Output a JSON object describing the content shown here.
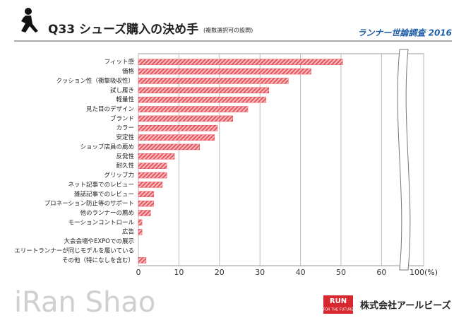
{
  "chart_data": {
    "type": "hbar",
    "title": "Q33 シューズ購入の決め手",
    "subtitle": "(複数選択可の設問)",
    "annotations": [
      "ランナー世論調査 2016",
      "iRan Shao",
      "RUN",
      "FOR THE FUTURE",
      "株式会社アールビーズ"
    ],
    "categories": [
      "フィット感",
      "価格",
      "クッション性（衝撃吸収性）",
      "試し履き",
      "軽量性",
      "見た目のデザイン",
      "ブランド",
      "カラー",
      "安定性",
      "ショップ店員の薦め",
      "反発性",
      "耐久性",
      "グリップ力",
      "ネット記事でのレビュー",
      "雑誌記事でのレビュー",
      "プロネーション防止等のサポート",
      "他のランナーの薦め",
      "モーションコントロール",
      "広告",
      "大会会場やEXPOでの展示",
      "エリートランナーが同じモデルを履いている",
      "その他（特になしを含む）"
    ],
    "values": [
      50.4,
      42.6,
      37,
      32.2,
      31.5,
      27,
      23.3,
      19.5,
      18.8,
      15.1,
      8.9,
      7,
      7,
      5.9,
      3.8,
      3.8,
      3,
      0.9,
      0.9,
      0,
      0,
      1.9
    ],
    "color": "#e8545c",
    "xlim": [
      0,
      100
    ],
    "xticks": [
      0,
      10,
      20,
      30,
      40,
      50,
      60,
      {
        "value": 100,
        "label": "100(%)"
      }
    ],
    "grid": true
  }
}
